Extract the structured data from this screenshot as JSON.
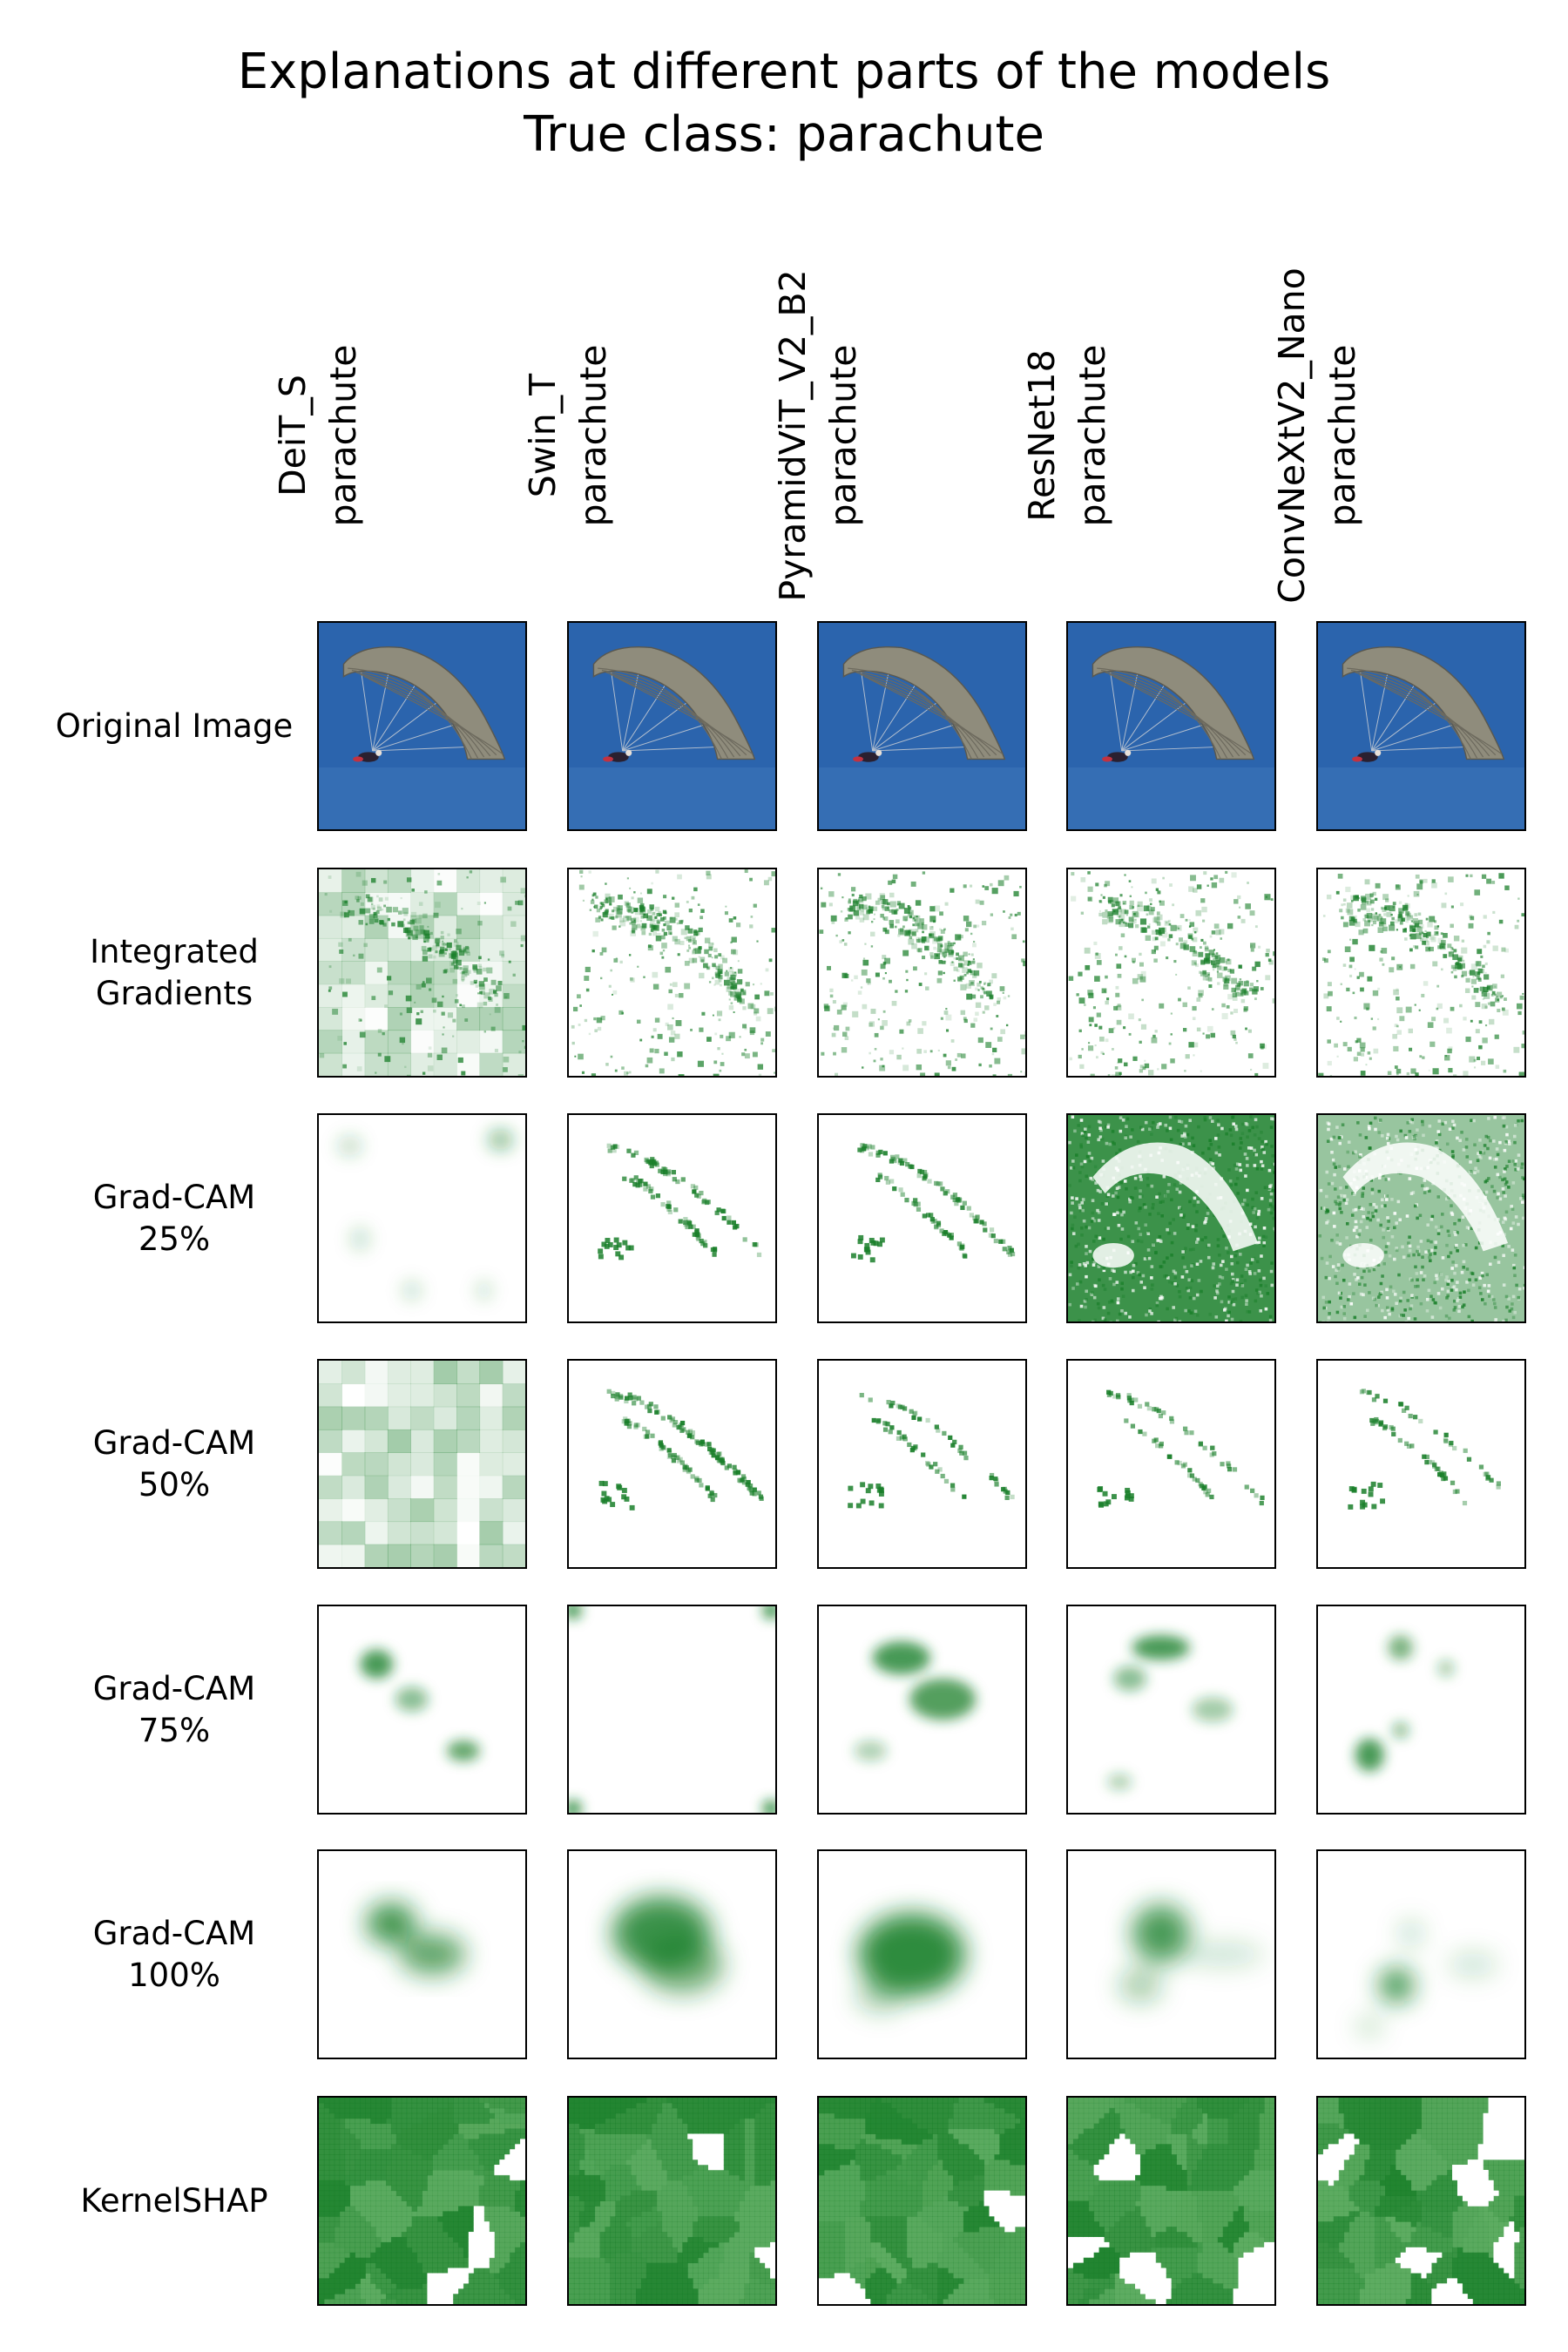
{
  "figure": {
    "title_line1": "Explanations at different parts of the models",
    "title_line2": "True class: parachute",
    "columns": [
      {
        "model": "DeiT_S",
        "prediction": "parachute"
      },
      {
        "model": "Swin_T",
        "prediction": "parachute"
      },
      {
        "model": "PyramidViT_V2_B2",
        "prediction": "parachute"
      },
      {
        "model": "ResNet18",
        "prediction": "parachute"
      },
      {
        "model": "ConvNeXtV2_Nano",
        "prediction": "parachute"
      }
    ],
    "rows": [
      {
        "line1": "Original Image",
        "line2": ""
      },
      {
        "line1": "Integrated",
        "line2": "Gradients"
      },
      {
        "line1": "Grad-CAM",
        "line2": "25%"
      },
      {
        "line1": "Grad-CAM",
        "line2": "50%"
      },
      {
        "line1": "Grad-CAM",
        "line2": "75%"
      },
      {
        "line1": "Grad-CAM",
        "line2": "100%"
      },
      {
        "line1": "KernelSHAP",
        "line2": ""
      }
    ],
    "colors": {
      "sky": "#2b64ad",
      "canopy": "#8f8c7c",
      "saliency": "#1a7f2a",
      "background": "#ffffff"
    }
  }
}
